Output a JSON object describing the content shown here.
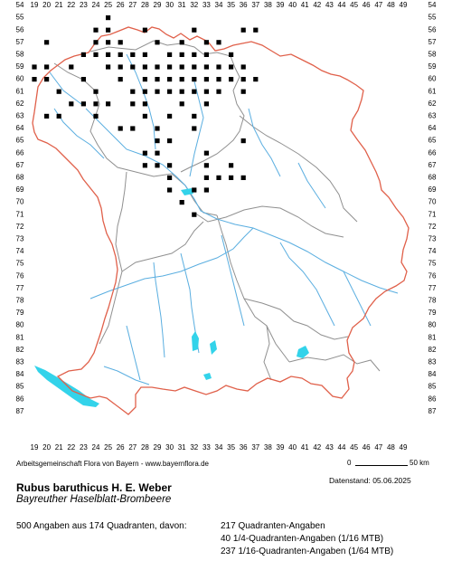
{
  "map": {
    "x_labels": [
      "19",
      "20",
      "21",
      "22",
      "23",
      "24",
      "25",
      "26",
      "27",
      "28",
      "29",
      "30",
      "31",
      "32",
      "33",
      "34",
      "35",
      "36",
      "37",
      "38",
      "39",
      "40",
      "41",
      "42",
      "43",
      "44",
      "45",
      "46",
      "47",
      "48",
      "49"
    ],
    "y_labels": [
      "54",
      "55",
      "56",
      "57",
      "58",
      "59",
      "60",
      "61",
      "62",
      "63",
      "64",
      "65",
      "66",
      "67",
      "68",
      "69",
      "70",
      "71",
      "72",
      "73",
      "74",
      "75",
      "76",
      "77",
      "78",
      "79",
      "80",
      "81",
      "82",
      "83",
      "84",
      "85",
      "86",
      "87"
    ],
    "colors": {
      "border_state": "#e0604a",
      "border_regions": "#909090",
      "rivers": "#5aaee0",
      "lakes": "#33d3ea",
      "grid": "#cfcfcf",
      "dot": "#000000"
    },
    "occurrences": [
      [
        25,
        55
      ],
      [
        24,
        56
      ],
      [
        25,
        56
      ],
      [
        28,
        56
      ],
      [
        32,
        56
      ],
      [
        36,
        56
      ],
      [
        37,
        56
      ],
      [
        20,
        57
      ],
      [
        24,
        57
      ],
      [
        25,
        57
      ],
      [
        26,
        57
      ],
      [
        29,
        57
      ],
      [
        31,
        57
      ],
      [
        33,
        57
      ],
      [
        34,
        57
      ],
      [
        23,
        58
      ],
      [
        24,
        58
      ],
      [
        25,
        58
      ],
      [
        26,
        58
      ],
      [
        27,
        58
      ],
      [
        28,
        58
      ],
      [
        30,
        58
      ],
      [
        31,
        58
      ],
      [
        32,
        58
      ],
      [
        33,
        58
      ],
      [
        35,
        58
      ],
      [
        19,
        59
      ],
      [
        20,
        59
      ],
      [
        22,
        59
      ],
      [
        25,
        59
      ],
      [
        26,
        59
      ],
      [
        27,
        59
      ],
      [
        28,
        59
      ],
      [
        29,
        59
      ],
      [
        30,
        59
      ],
      [
        31,
        59
      ],
      [
        32,
        59
      ],
      [
        33,
        59
      ],
      [
        34,
        59
      ],
      [
        35,
        59
      ],
      [
        36,
        59
      ],
      [
        19,
        60
      ],
      [
        20,
        60
      ],
      [
        23,
        60
      ],
      [
        26,
        60
      ],
      [
        28,
        60
      ],
      [
        29,
        60
      ],
      [
        30,
        60
      ],
      [
        31,
        60
      ],
      [
        32,
        60
      ],
      [
        33,
        60
      ],
      [
        34,
        60
      ],
      [
        35,
        60
      ],
      [
        36,
        60
      ],
      [
        37,
        60
      ],
      [
        21,
        61
      ],
      [
        24,
        61
      ],
      [
        27,
        61
      ],
      [
        28,
        61
      ],
      [
        29,
        61
      ],
      [
        30,
        61
      ],
      [
        31,
        61
      ],
      [
        32,
        61
      ],
      [
        33,
        61
      ],
      [
        34,
        61
      ],
      [
        36,
        61
      ],
      [
        22,
        62
      ],
      [
        23,
        62
      ],
      [
        24,
        62
      ],
      [
        25,
        62
      ],
      [
        27,
        62
      ],
      [
        28,
        62
      ],
      [
        31,
        62
      ],
      [
        33,
        62
      ],
      [
        20,
        63
      ],
      [
        21,
        63
      ],
      [
        24,
        63
      ],
      [
        28,
        63
      ],
      [
        30,
        63
      ],
      [
        32,
        63
      ],
      [
        26,
        64
      ],
      [
        27,
        64
      ],
      [
        29,
        64
      ],
      [
        32,
        64
      ],
      [
        29,
        65
      ],
      [
        30,
        65
      ],
      [
        36,
        65
      ],
      [
        28,
        66
      ],
      [
        29,
        66
      ],
      [
        33,
        66
      ],
      [
        28,
        67
      ],
      [
        29,
        67
      ],
      [
        30,
        67
      ],
      [
        33,
        67
      ],
      [
        35,
        67
      ],
      [
        30,
        68
      ],
      [
        33,
        68
      ],
      [
        34,
        68
      ],
      [
        35,
        68
      ],
      [
        36,
        68
      ],
      [
        30,
        69
      ],
      [
        32,
        69
      ],
      [
        33,
        69
      ],
      [
        31,
        70
      ],
      [
        32,
        71
      ]
    ]
  },
  "texts": {
    "credit": "Arbeitsgemeinschaft Flora von Bayern - www.bayernflora.de",
    "scale_zero": "0",
    "scale_label": "50 km",
    "date": "Datenstand: 05.06.2025",
    "title": "Rubus baruthicus H. E. Weber",
    "subtitle": "Bayreuther Haselblatt-Brombeere",
    "summary": "500 Angaben aus 174 Quadranten, davon:",
    "line1": "217 Quadranten-Angaben",
    "line2": "40 1/4-Quadranten-Angaben (1/16 MTB)",
    "line3": "237 1/16-Quadranten-Angaben (1/64 MTB)"
  }
}
